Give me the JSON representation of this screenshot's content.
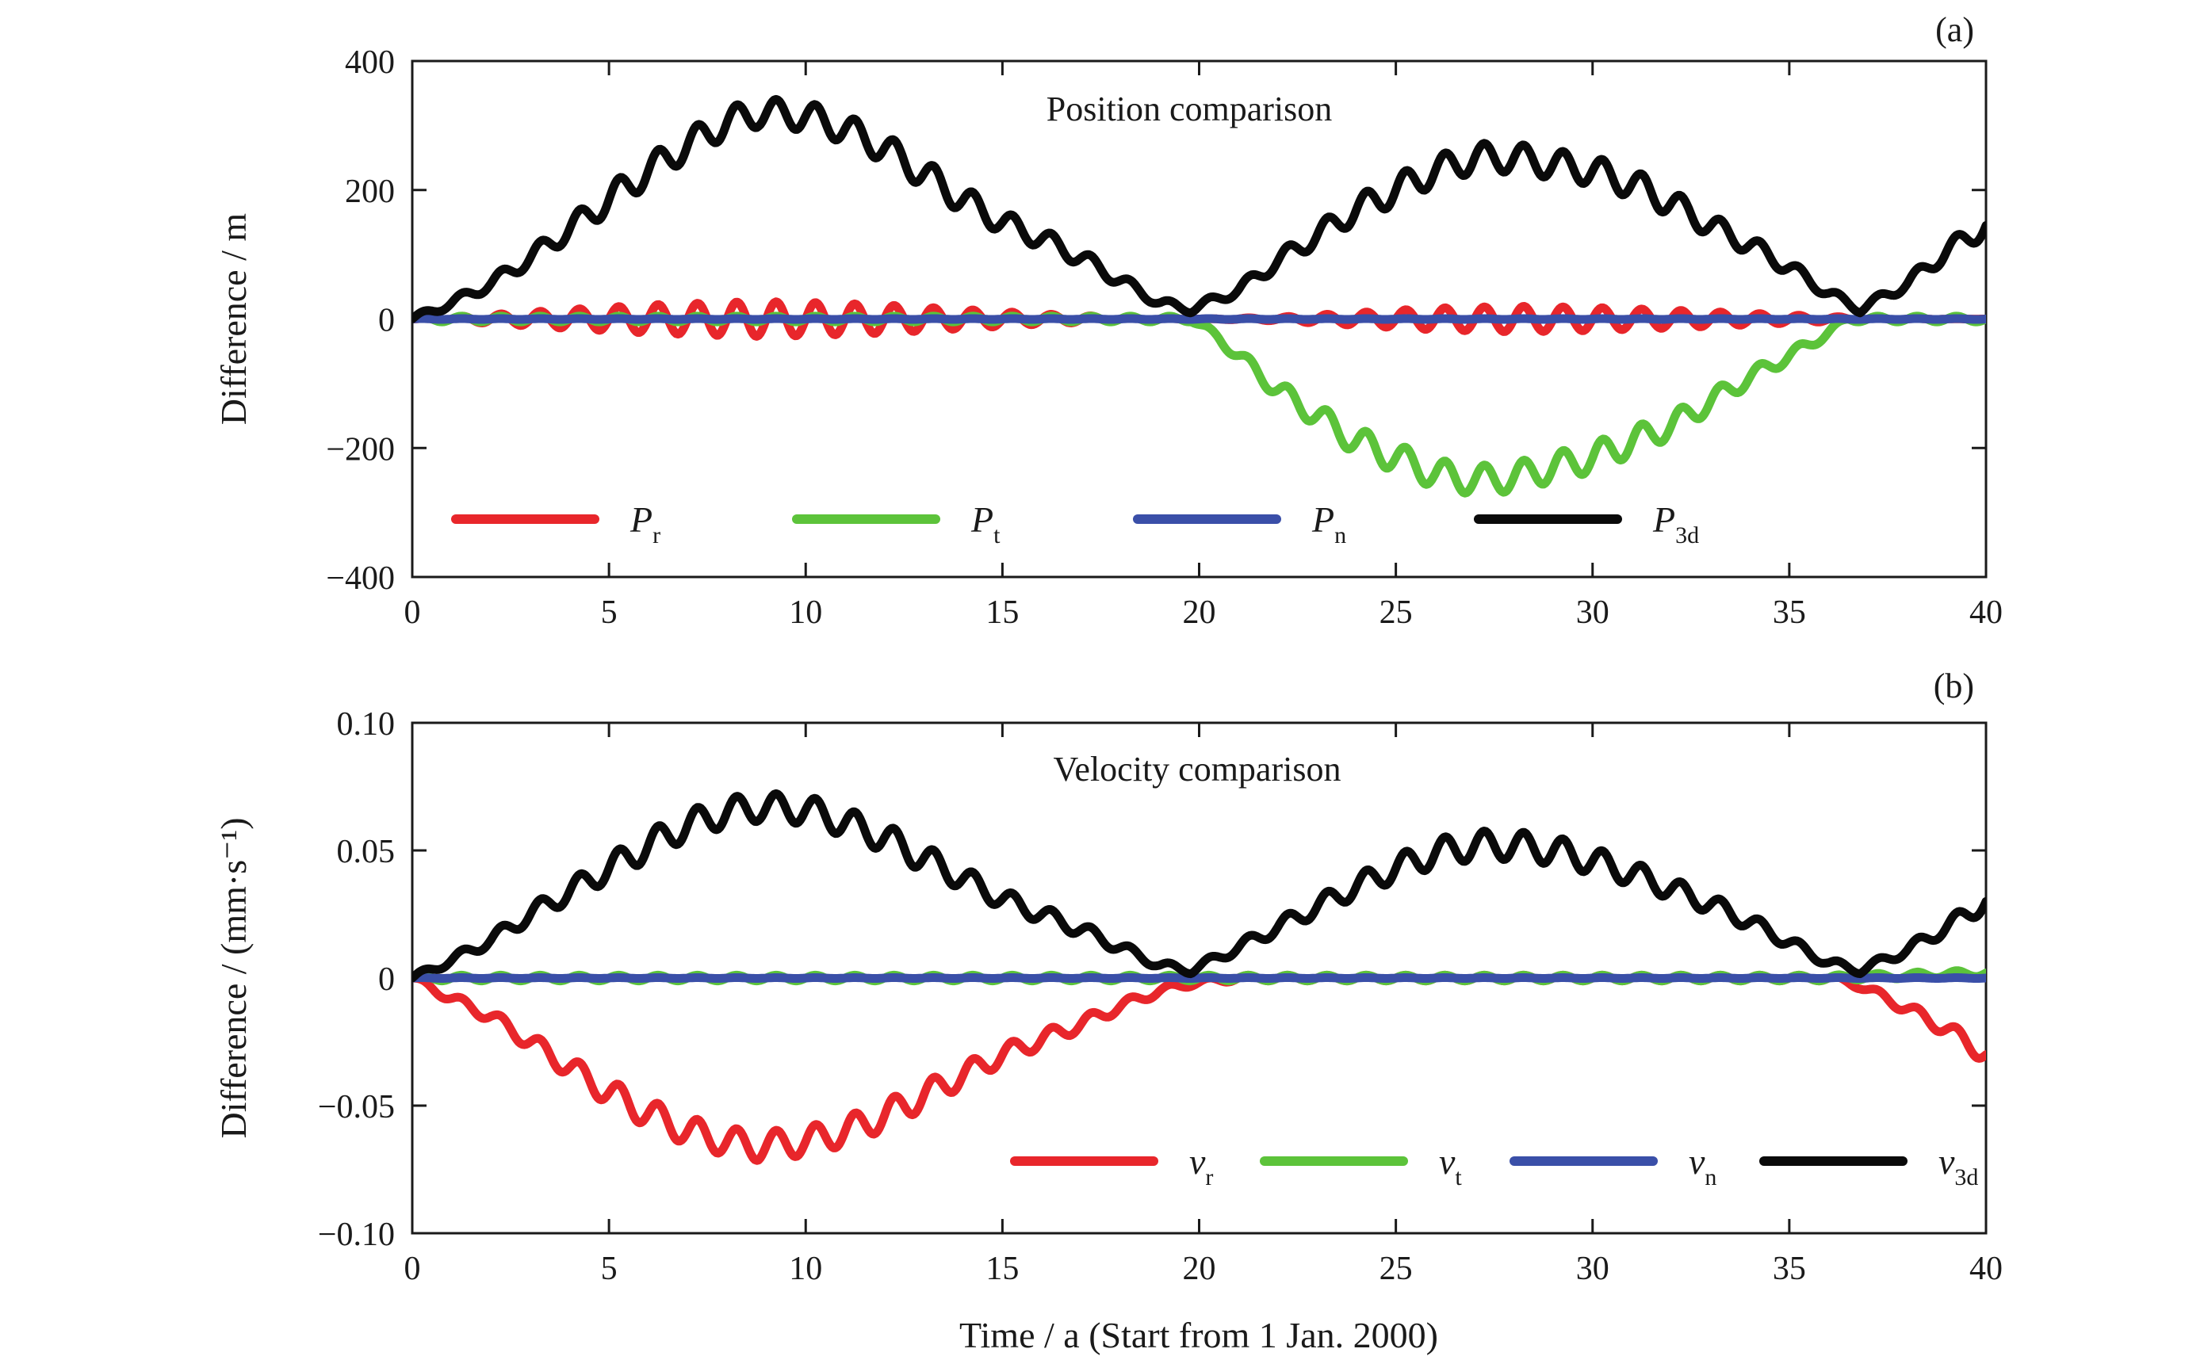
{
  "xlabel": "Time / a (Start from 1 Jan. 2000)",
  "chart_data": [
    {
      "type": "line",
      "panel_tag": "(a)",
      "title": "Position comparison",
      "ylabel": "Difference / m",
      "xlim": [
        0,
        40
      ],
      "ylim": [
        -400,
        400
      ],
      "x_ticks": [
        0,
        5,
        10,
        15,
        20,
        25,
        30,
        35,
        40
      ],
      "x_tick_labels": [
        "0",
        "5",
        "10",
        "15",
        "20",
        "25",
        "30",
        "35",
        "40"
      ],
      "y_ticks": [
        -400,
        -200,
        0,
        200,
        400
      ],
      "y_tick_labels": [
        "−400",
        "−200",
        "0",
        "200",
        "400"
      ],
      "grid": false,
      "legend_position": "bottom-left",
      "series": [
        {
          "name": "P",
          "subscript": "r",
          "color": "#e8262b",
          "x": [
            0,
            2,
            4,
            6,
            8,
            8.8,
            10,
            12,
            14,
            16,
            18,
            20,
            22,
            24,
            26,
            28,
            30,
            32,
            34,
            36,
            38,
            40
          ],
          "y": [
            0,
            7,
            15,
            22,
            26,
            27,
            26,
            22,
            15,
            8,
            3,
            0,
            3,
            10,
            17,
            20,
            18,
            14,
            9,
            4,
            1,
            0
          ]
        },
        {
          "name": "P",
          "subscript": "t",
          "color": "#5cc33a",
          "x": [
            0,
            2,
            4,
            6,
            8,
            10,
            12,
            14,
            16,
            18,
            19.8,
            20.5,
            22,
            24,
            26,
            27,
            28,
            30,
            32,
            34,
            35.5,
            36.5,
            38,
            40
          ],
          "y": [
            0,
            0,
            0,
            0,
            0,
            0,
            0,
            0,
            0,
            0,
            0,
            -30,
            -110,
            -190,
            -240,
            -250,
            -245,
            -215,
            -165,
            -90,
            -40,
            0,
            0,
            0
          ]
        },
        {
          "name": "P",
          "subscript": "n",
          "color": "#3a4fa8",
          "x": [
            0,
            10,
            20,
            30,
            40
          ],
          "y": [
            0,
            0,
            0,
            0,
            0
          ]
        },
        {
          "name": "P",
          "subscript": "3d",
          "color": "#0a0a0a",
          "x": [
            0,
            1,
            2,
            3,
            4,
            5,
            6,
            7,
            8,
            8.8,
            10,
            11,
            12,
            13,
            14,
            15,
            16,
            17,
            18,
            19,
            19.8,
            21,
            22,
            23,
            24,
            25,
            26,
            27,
            28,
            29,
            30,
            31,
            32,
            33,
            34,
            35,
            36,
            36.8,
            38,
            39,
            40
          ],
          "y": [
            0,
            25,
            55,
            95,
            140,
            185,
            230,
            270,
            305,
            320,
            315,
            295,
            265,
            225,
            185,
            150,
            125,
            95,
            60,
            25,
            15,
            45,
            90,
            130,
            170,
            200,
            230,
            250,
            250,
            240,
            230,
            210,
            180,
            145,
            115,
            80,
            40,
            15,
            55,
            105,
            145
          ]
        }
      ]
    },
    {
      "type": "line",
      "panel_tag": "(b)",
      "title": "Velocity comparison",
      "ylabel": "Difference / (mm·s⁻¹)",
      "xlim": [
        0,
        40
      ],
      "ylim": [
        -0.1,
        0.1
      ],
      "x_ticks": [
        0,
        5,
        10,
        15,
        20,
        25,
        30,
        35,
        40
      ],
      "x_tick_labels": [
        "0",
        "5",
        "10",
        "15",
        "20",
        "25",
        "30",
        "35",
        "40"
      ],
      "y_ticks": [
        -0.1,
        -0.05,
        0,
        0.05,
        0.1
      ],
      "y_tick_labels": [
        "−0.10",
        "−0.05",
        "0",
        "0.05",
        "0.10"
      ],
      "grid": false,
      "legend_position": "bottom-right",
      "series": [
        {
          "name": "v",
          "subscript": "r",
          "color": "#e8262b",
          "x": [
            0,
            1,
            2,
            3,
            4,
            5,
            6,
            7,
            8,
            8.8,
            10,
            11,
            12,
            13,
            14,
            15,
            16,
            17,
            18,
            19,
            19.8,
            21,
            24,
            27,
            30,
            33,
            36,
            36.8,
            38,
            39,
            40
          ],
          "y": [
            0,
            -0.008,
            -0.015,
            -0.025,
            -0.035,
            -0.045,
            -0.053,
            -0.06,
            -0.064,
            -0.066,
            -0.064,
            -0.06,
            -0.054,
            -0.046,
            -0.038,
            -0.03,
            -0.024,
            -0.018,
            -0.011,
            -0.005,
            -0.002,
            0,
            0,
            0,
            0,
            0,
            0,
            -0.003,
            -0.012,
            -0.02,
            -0.03
          ]
        },
        {
          "name": "v",
          "subscript": "t",
          "color": "#5cc33a",
          "x": [
            0,
            10,
            20,
            30,
            36,
            38,
            40
          ],
          "y": [
            0,
            0,
            0,
            0,
            0,
            0.001,
            0.002
          ]
        },
        {
          "name": "v",
          "subscript": "n",
          "color": "#3a4fa8",
          "x": [
            0,
            10,
            20,
            30,
            40
          ],
          "y": [
            0,
            0,
            0,
            0,
            0
          ]
        },
        {
          "name": "v",
          "subscript": "3d",
          "color": "#0a0a0a",
          "x": [
            0,
            1,
            2,
            3,
            4,
            5,
            6,
            7,
            8,
            8.8,
            10,
            11,
            12,
            13,
            14,
            15,
            16,
            17,
            18,
            19,
            19.8,
            21,
            22,
            23,
            24,
            25,
            26,
            27,
            28,
            29,
            30,
            31,
            32,
            33,
            34,
            35,
            36,
            36.8,
            38,
            39,
            40
          ],
          "y": [
            0,
            0.007,
            0.015,
            0.025,
            0.034,
            0.043,
            0.052,
            0.06,
            0.065,
            0.067,
            0.066,
            0.061,
            0.055,
            0.047,
            0.039,
            0.031,
            0.025,
            0.019,
            0.012,
            0.005,
            0.003,
            0.012,
            0.02,
            0.028,
            0.036,
            0.043,
            0.049,
            0.052,
            0.052,
            0.05,
            0.046,
            0.041,
            0.035,
            0.029,
            0.022,
            0.014,
            0.006,
            0.003,
            0.011,
            0.02,
            0.03
          ]
        }
      ]
    }
  ]
}
